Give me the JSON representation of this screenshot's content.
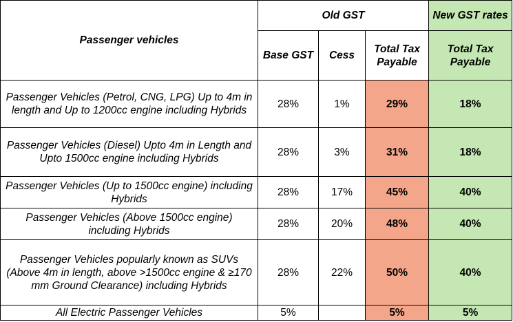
{
  "header": {
    "vehicle_col": "Passenger vehicles",
    "old_gst": "Old GST",
    "new_gst": "New GST rates",
    "base_gst": "Base GST",
    "cess": "Cess",
    "total_tax_payable_old": "Total Tax Payable",
    "total_tax_payable_new": "Total Tax Payable"
  },
  "rows": [
    {
      "category": "Passenger Vehicles (Petrol, CNG, LPG) Up to 4m in length and Up to 1200cc engine including Hybrids",
      "base_gst": "28%",
      "cess": "1%",
      "old_total": "29%",
      "new_total": "18%"
    },
    {
      "category": "Passenger Vehicles (Diesel) Upto 4m in Length and Upto 1500cc engine including Hybrids",
      "base_gst": "28%",
      "cess": "3%",
      "old_total": "31%",
      "new_total": "18%"
    },
    {
      "category": "Passenger Vehicles (Up to 1500cc engine) including Hybrids",
      "base_gst": "28%",
      "cess": "17%",
      "old_total": "45%",
      "new_total": "40%"
    },
    {
      "category": "Passenger Vehicles (Above 1500cc engine) including Hybrids",
      "base_gst": "28%",
      "cess": "20%",
      "old_total": "48%",
      "new_total": "40%"
    },
    {
      "category": "Passenger Vehicles popularly known as SUVs (Above 4m in length, above >1500cc engine & ≥170 mm Ground Clearance) including Hybrids",
      "base_gst": "28%",
      "cess": "22%",
      "old_total": "50%",
      "new_total": "40%"
    },
    {
      "category": "All Electric Passenger Vehicles",
      "base_gst": "5%",
      "cess": "",
      "old_total": "5%",
      "new_total": "5%"
    }
  ],
  "colors": {
    "old_total_fill": "#f4a68a",
    "new_total_fill": "#c4e7b3"
  }
}
